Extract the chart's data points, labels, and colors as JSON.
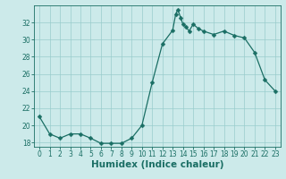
{
  "x": [
    0,
    1,
    2,
    3,
    4,
    5,
    6,
    7,
    8,
    9,
    10,
    11,
    12,
    13,
    13.3,
    13.5,
    13.8,
    14,
    14.3,
    14.6,
    15,
    15.5,
    16,
    17,
    18,
    19,
    20,
    21,
    22,
    23
  ],
  "y": [
    21,
    19,
    18.5,
    19,
    19,
    18.5,
    17.9,
    17.9,
    17.9,
    18.5,
    20,
    25,
    29.5,
    31.1,
    33,
    33.5,
    32.5,
    31.8,
    31.5,
    31,
    31.8,
    31.3,
    31.0,
    30.6,
    31.0,
    30.5,
    30.2,
    28.5,
    25.3,
    24
  ],
  "xlabel": "Humidex (Indice chaleur)",
  "ylim": [
    17.5,
    34.0
  ],
  "xlim": [
    -0.5,
    23.5
  ],
  "yticks": [
    18,
    20,
    22,
    24,
    26,
    28,
    30,
    32
  ],
  "xticks": [
    0,
    1,
    2,
    3,
    4,
    5,
    6,
    7,
    8,
    9,
    10,
    11,
    12,
    13,
    14,
    15,
    16,
    17,
    18,
    19,
    20,
    21,
    22,
    23
  ],
  "line_color": "#1a6e64",
  "marker": "D",
  "marker_size": 2.5,
  "bg_color": "#cceaea",
  "grid_color": "#99cccc",
  "fig_bg": "#cceaea",
  "tick_labelsize": 5.5,
  "xlabel_fontsize": 7.5
}
